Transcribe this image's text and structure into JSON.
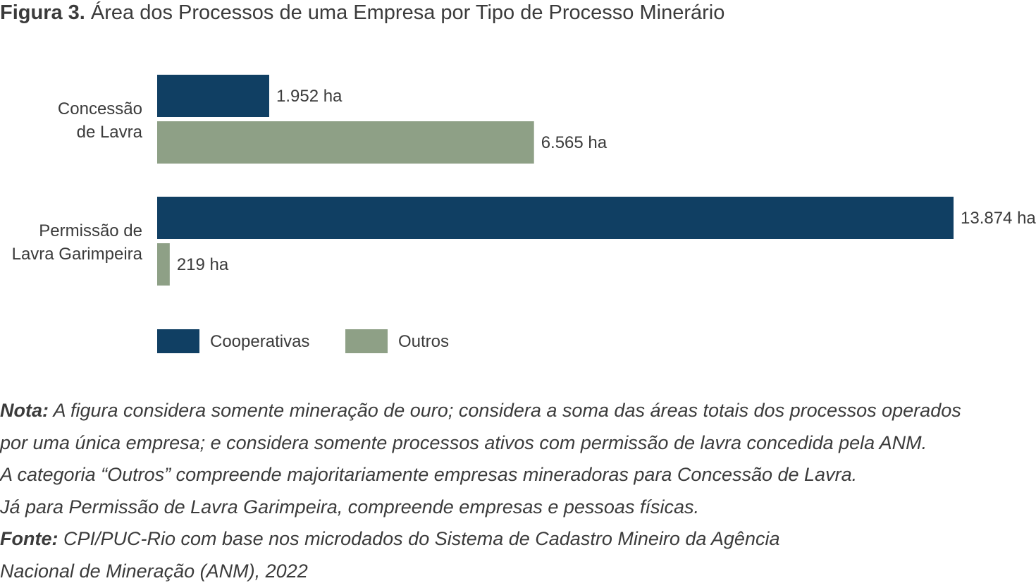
{
  "title": {
    "lead": "Figura 3.",
    "text": "Área dos Processos de uma Empresa por Tipo de Processo Minerário"
  },
  "colors": {
    "series_0": "#103f63",
    "series_1": "#8ea086",
    "text": "#3b3b3b"
  },
  "chart_data": {
    "type": "bar",
    "orientation": "horizontal",
    "categories": [
      [
        "Concessão",
        "de Lavra"
      ],
      [
        "Permissão de",
        "Lavra Garimpeira"
      ]
    ],
    "series": [
      {
        "name": "Cooperativas",
        "values": [
          1952,
          13874
        ],
        "labels": [
          "1.952 ha",
          "13.874 ha"
        ]
      },
      {
        "name": "Outros",
        "values": [
          6565,
          219
        ],
        "labels": [
          "6.565 ha",
          "219 ha"
        ]
      }
    ],
    "unit": "ha",
    "xlim": [
      0,
      13874
    ],
    "grid": false,
    "axes_visible": false,
    "legend_position": "bottom-left"
  },
  "notes": {
    "nota_lead": "Nota:",
    "nota_lines": [
      "A figura considera somente mineração de ouro; considera a soma das áreas totais dos processos operados",
      "por uma única empresa; e considera somente processos ativos com permissão de lavra concedida pela ANM.",
      "A categoria “Outros” compreende majoritariamente empresas mineradoras para Concessão de Lavra.",
      "Já para Permissão de Lavra Garimpeira, compreende empresas e pessoas físicas."
    ],
    "fonte_lead": "Fonte:",
    "fonte_lines": [
      "CPI/PUC-Rio com base nos microdados do Sistema de Cadastro Mineiro da Agência",
      "Nacional de Mineração (ANM), 2022"
    ]
  }
}
